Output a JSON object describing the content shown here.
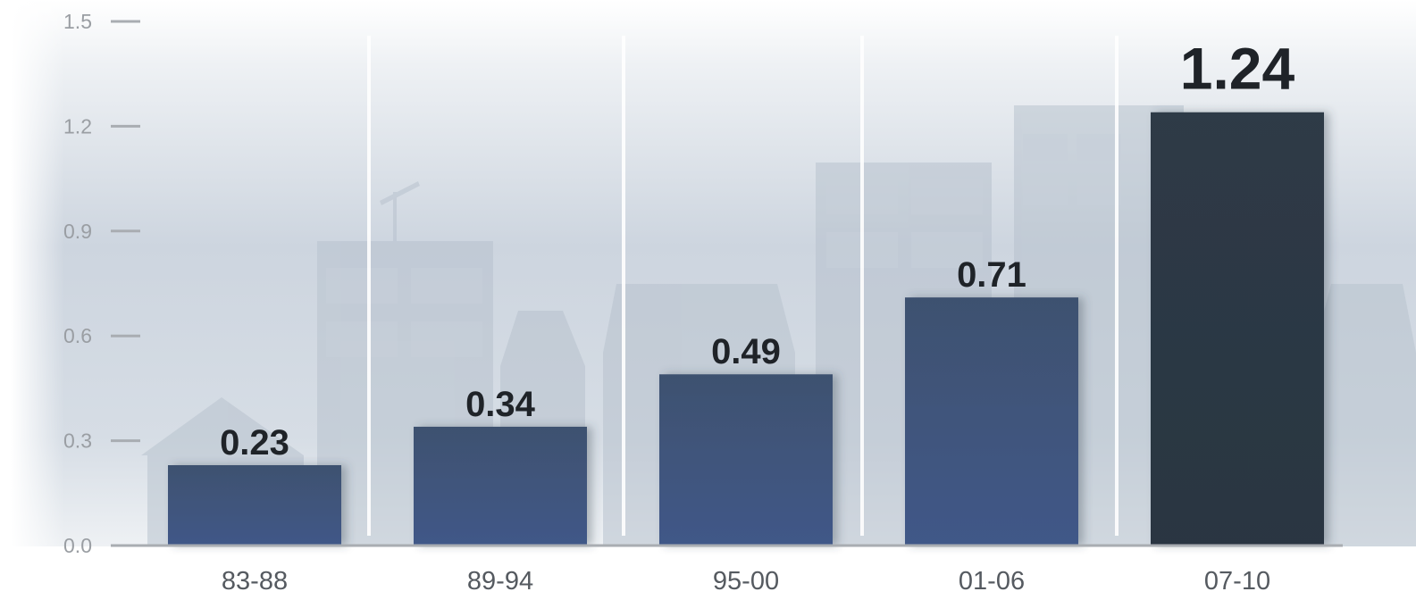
{
  "chart_data": {
    "type": "bar",
    "categories": [
      "83-88",
      "89-94",
      "95-00",
      "01-06",
      "07-10"
    ],
    "values": [
      0.23,
      0.34,
      0.49,
      0.71,
      1.24
    ],
    "value_labels": [
      "0.23",
      "0.34",
      "0.49",
      "0.71",
      "1.24"
    ],
    "title": "",
    "xlabel": "",
    "ylabel": "",
    "ylim": [
      0,
      1.5
    ],
    "yticks": [
      0.0,
      0.3,
      0.6,
      0.9,
      1.2,
      1.5
    ],
    "ytick_labels": [
      "0.0",
      "0.3",
      "0.6",
      "0.9",
      "1.2",
      "1.5"
    ],
    "grid": false,
    "highlight_index": 4,
    "colors": {
      "bar": "#3f5478",
      "bar_highlight": "#2c3844",
      "axis": "#a9adb2",
      "background_top": "#ffffff",
      "background_mid": "#c9d1dc",
      "skyline": "#b4bfcb"
    }
  }
}
